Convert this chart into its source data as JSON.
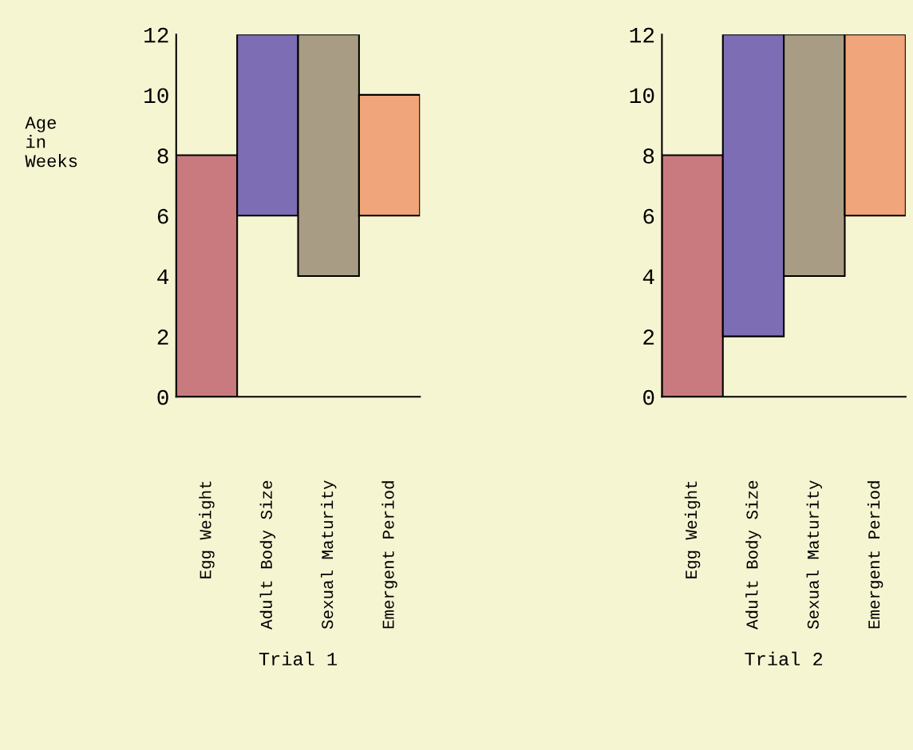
{
  "chart_data": [
    {
      "type": "bar",
      "xlabel": "Trial 1",
      "ylabel": "Age\nin\nWeeks",
      "categories": [
        "Egg Weight",
        "Adult Body Size",
        "Sexual Maturity",
        "Emergent Period"
      ],
      "values": [
        8,
        6,
        8,
        4
      ],
      "base": [
        0,
        6,
        4,
        6
      ],
      "colors": [
        "#c97a7e",
        "#7d6db5",
        "#a89c84",
        "#f0a57a"
      ],
      "ylim": [
        0,
        12
      ],
      "yticks": [
        0,
        2,
        4,
        6,
        8,
        10,
        12
      ]
    },
    {
      "type": "bar",
      "xlabel": "Trial 2",
      "categories": [
        "Egg Weight",
        "Adult Body Size",
        "Sexual Maturity",
        "Emergent Period"
      ],
      "values": [
        8,
        10,
        8,
        6
      ],
      "base": [
        0,
        2,
        4,
        6
      ],
      "colors": [
        "#c97a7e",
        "#7d6db5",
        "#a89c84",
        "#f0a57a"
      ],
      "ylim": [
        0,
        12
      ],
      "yticks": [
        0,
        2,
        4,
        6,
        8,
        10,
        12
      ]
    }
  ]
}
